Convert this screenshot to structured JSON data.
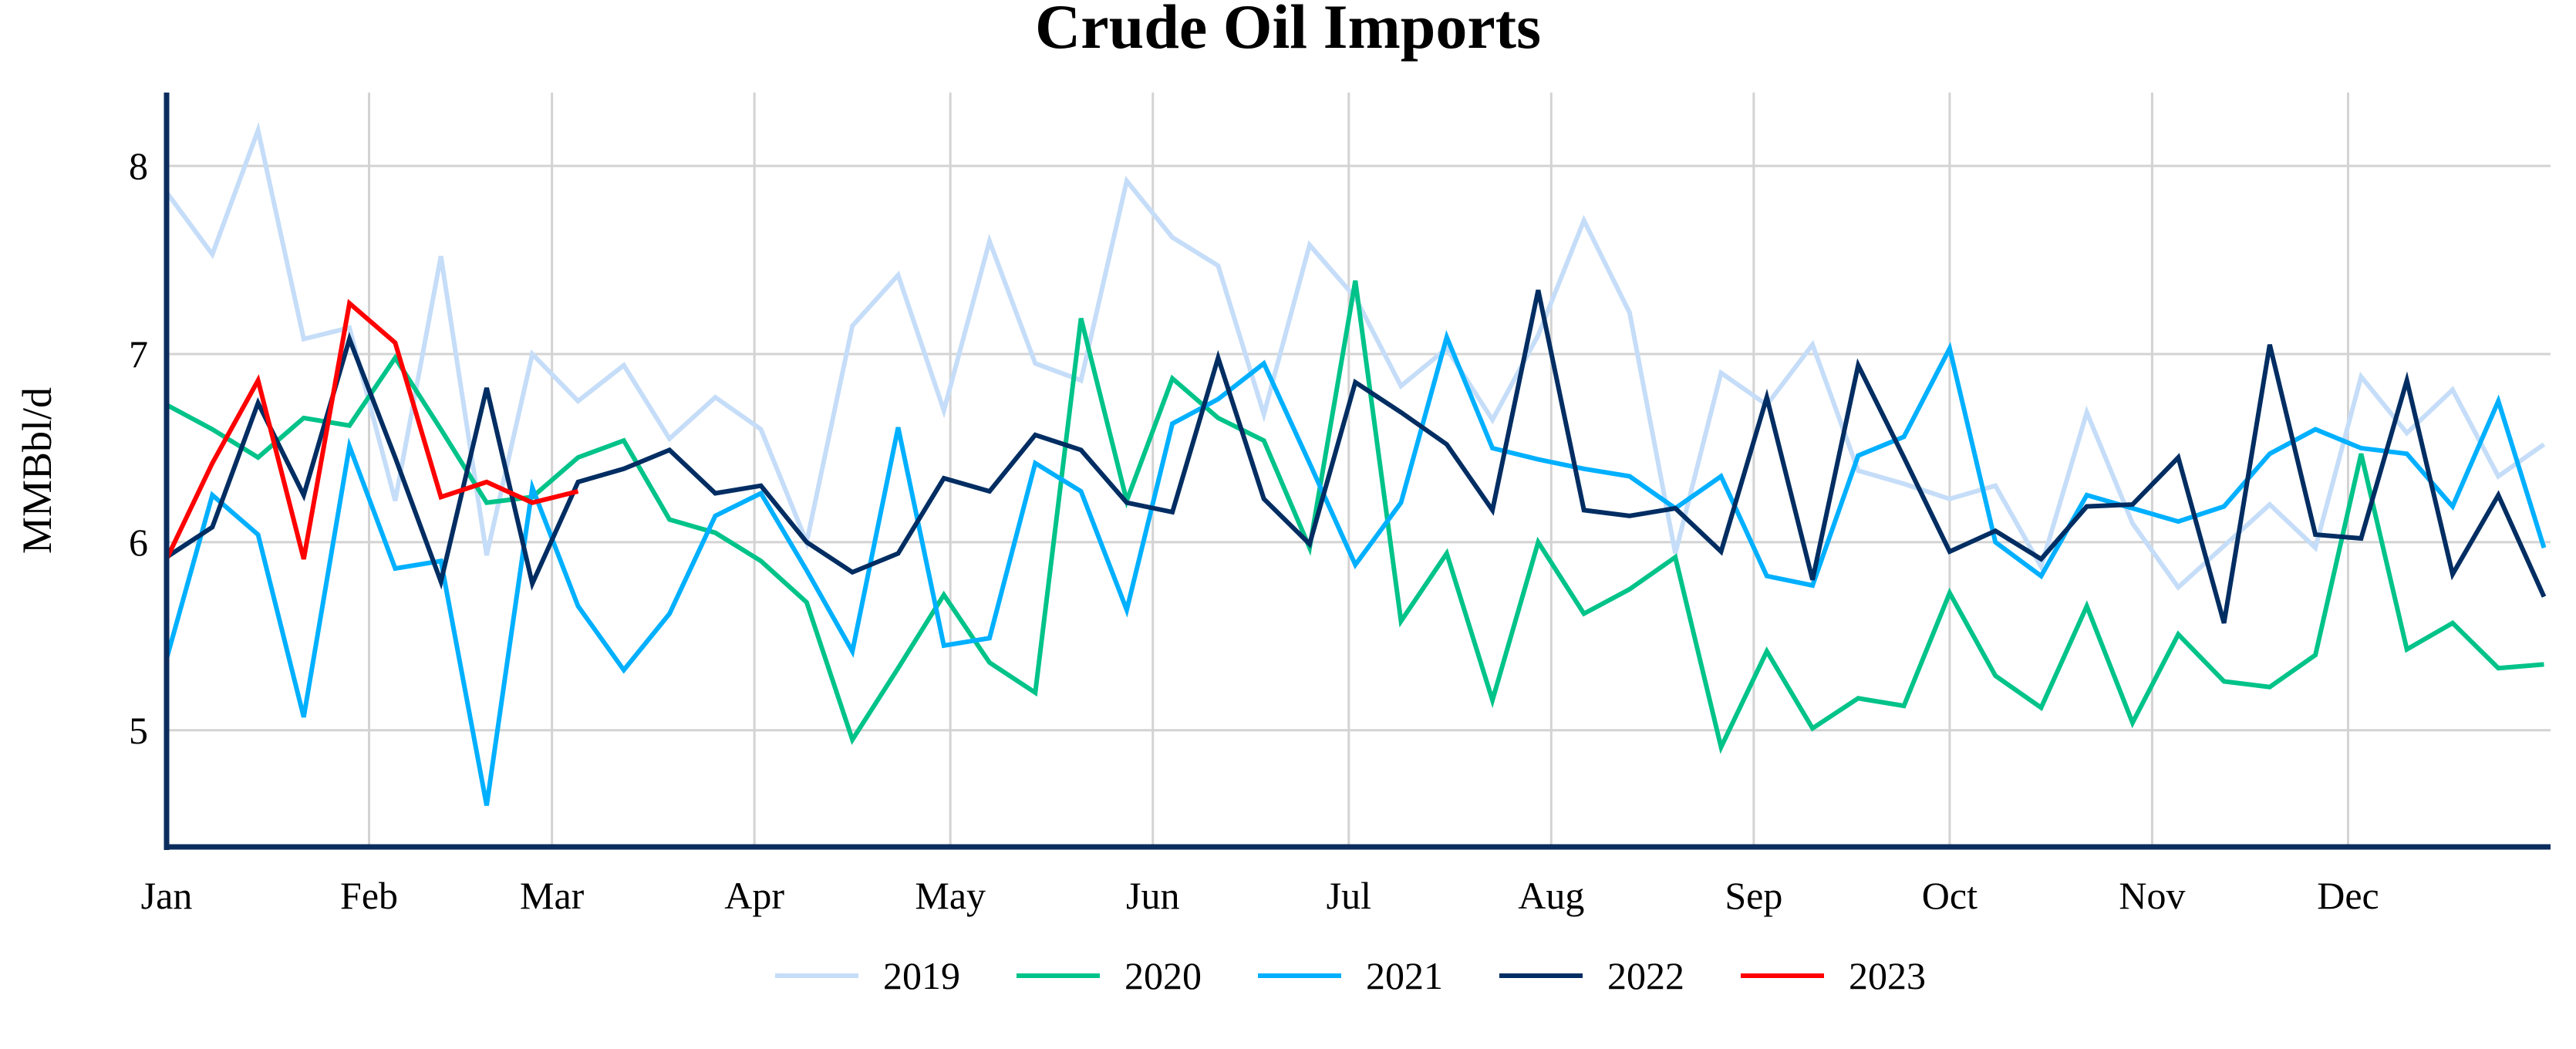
{
  "chart_data": {
    "type": "line",
    "title": "Crude Oil Imports",
    "xlabel": "",
    "ylabel": "MMBbl/d",
    "x_frequency": "weekly",
    "x_tick_labels": [
      "Jan",
      "Feb",
      "Mar",
      "Apr",
      "May",
      "Jun",
      "Jul",
      "Aug",
      "Sep",
      "Oct",
      "Nov",
      "Dec"
    ],
    "y_ticks": [
      5,
      6,
      7,
      8
    ],
    "ylim": [
      4.38,
      8.39
    ],
    "grid": true,
    "legend_position": "bottom",
    "series": [
      {
        "name": "2019",
        "color": "#C5DDF8",
        "values": [
          7.86,
          7.53,
          8.19,
          7.08,
          7.14,
          6.22,
          7.52,
          5.93,
          7.0,
          6.75,
          6.94,
          6.55,
          6.77,
          6.6,
          6.0,
          7.15,
          7.42,
          6.7,
          7.6,
          6.95,
          6.86,
          7.92,
          7.62,
          7.47,
          6.68,
          7.58,
          7.3,
          6.83,
          7.03,
          6.65,
          7.1,
          7.71,
          7.22,
          5.94,
          6.9,
          6.73,
          7.05,
          6.38,
          6.31,
          6.23,
          6.3,
          5.87,
          6.69,
          6.1,
          5.76,
          5.98,
          6.2,
          5.97,
          6.88,
          6.58,
          6.81,
          6.35,
          6.52
        ]
      },
      {
        "name": "2020",
        "color": "#00C389",
        "values": [
          6.73,
          6.6,
          6.45,
          6.66,
          6.62,
          6.98,
          6.6,
          6.21,
          6.24,
          6.45,
          6.54,
          6.12,
          6.05,
          5.9,
          5.68,
          4.95,
          5.33,
          5.72,
          5.36,
          5.2,
          7.19,
          6.22,
          6.87,
          6.66,
          6.54,
          5.97,
          7.39,
          5.58,
          5.94,
          5.16,
          6.0,
          5.62,
          5.75,
          5.92,
          4.91,
          5.42,
          5.01,
          5.17,
          5.13,
          5.73,
          5.29,
          5.12,
          5.66,
          5.04,
          5.51,
          5.26,
          5.23,
          5.4,
          6.47,
          5.43,
          5.57,
          5.33,
          5.35
        ]
      },
      {
        "name": "2021",
        "color": "#00B0FF",
        "values": [
          5.38,
          6.25,
          6.04,
          5.07,
          6.51,
          5.86,
          5.9,
          4.6,
          6.29,
          5.66,
          5.32,
          5.62,
          6.14,
          6.26,
          5.85,
          5.42,
          6.61,
          5.45,
          5.49,
          6.42,
          6.27,
          5.64,
          6.63,
          6.76,
          6.95,
          6.42,
          5.88,
          6.21,
          7.09,
          6.5,
          6.44,
          6.39,
          6.35,
          6.18,
          6.35,
          5.82,
          5.77,
          6.46,
          6.56,
          7.03,
          6.0,
          5.82,
          6.25,
          6.18,
          6.11,
          6.19,
          6.47,
          6.6,
          6.5,
          6.47,
          6.19,
          6.75,
          5.97
        ]
      },
      {
        "name": "2022",
        "color": "#002D62",
        "values": [
          5.92,
          6.08,
          6.74,
          6.25,
          7.08,
          6.45,
          5.79,
          6.82,
          5.78,
          6.32,
          6.39,
          6.49,
          6.26,
          6.3,
          6.0,
          5.84,
          5.94,
          6.34,
          6.27,
          6.57,
          6.49,
          6.21,
          6.16,
          6.98,
          6.23,
          5.99,
          6.85,
          6.69,
          6.52,
          6.17,
          7.34,
          6.17,
          6.14,
          6.18,
          5.95,
          6.77,
          5.8,
          6.94,
          6.45,
          5.95,
          6.06,
          5.91,
          6.19,
          6.2,
          6.45,
          5.57,
          7.05,
          6.04,
          6.02,
          6.86,
          5.83,
          6.25,
          5.71
        ]
      },
      {
        "name": "2023",
        "color": "#FF0000",
        "values": [
          5.91,
          6.42,
          6.86,
          5.91,
          7.27,
          7.06,
          6.24,
          6.32,
          6.21,
          6.27
        ]
      }
    ]
  },
  "colors": {
    "axis": "#0B2D5E",
    "grid": "#D3D3D3"
  }
}
